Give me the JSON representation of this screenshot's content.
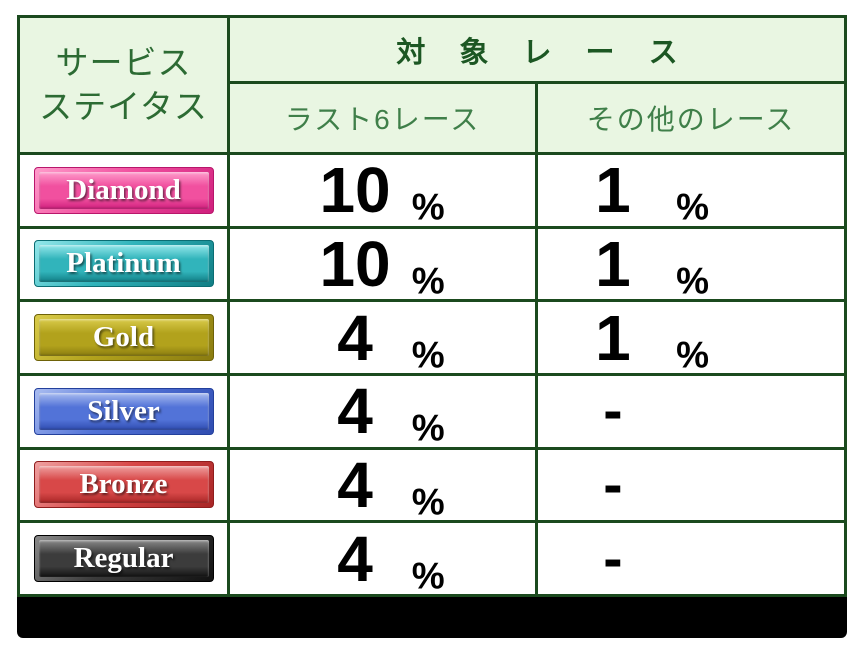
{
  "table": {
    "corner_header": {
      "line1": "サービス",
      "line2": "ステイタス"
    },
    "group_header": "対 象 レ ー ス",
    "sub_headers": {
      "last6": "ラスト6レース",
      "other": "その他のレース"
    },
    "rows": [
      {
        "tier": "Diamond",
        "last6_value": "10",
        "last6_unit": "%",
        "other_value": "1",
        "other_unit": "%",
        "badge_color": "#f1509f"
      },
      {
        "tier": "Platinum",
        "last6_value": "10",
        "last6_unit": "%",
        "other_value": "1",
        "other_unit": "%",
        "badge_color": "#31b4bb"
      },
      {
        "tier": "Gold",
        "last6_value": "4",
        "last6_unit": "%",
        "other_value": "1",
        "other_unit": "%",
        "badge_color": "#b2a21c"
      },
      {
        "tier": "Silver",
        "last6_value": "4",
        "last6_unit": "%",
        "other_value": "-",
        "other_unit": "",
        "badge_color": "#5273d8"
      },
      {
        "tier": "Bronze",
        "last6_value": "4",
        "last6_unit": "%",
        "other_value": "-",
        "other_unit": "",
        "badge_color": "#d84848"
      },
      {
        "tier": "Regular",
        "last6_value": "4",
        "last6_unit": "%",
        "other_value": "-",
        "other_unit": "",
        "badge_color": "#3c3c3c"
      }
    ],
    "colors": {
      "grid_border": "#1b4a1e",
      "header_bg": "#e9f6e2",
      "corner_text": "#2c6b33",
      "group_header_text": "#1c5723",
      "sub_header_text": "#3f7f49",
      "value_text": "#000000",
      "banner_bg": "#000000"
    }
  }
}
